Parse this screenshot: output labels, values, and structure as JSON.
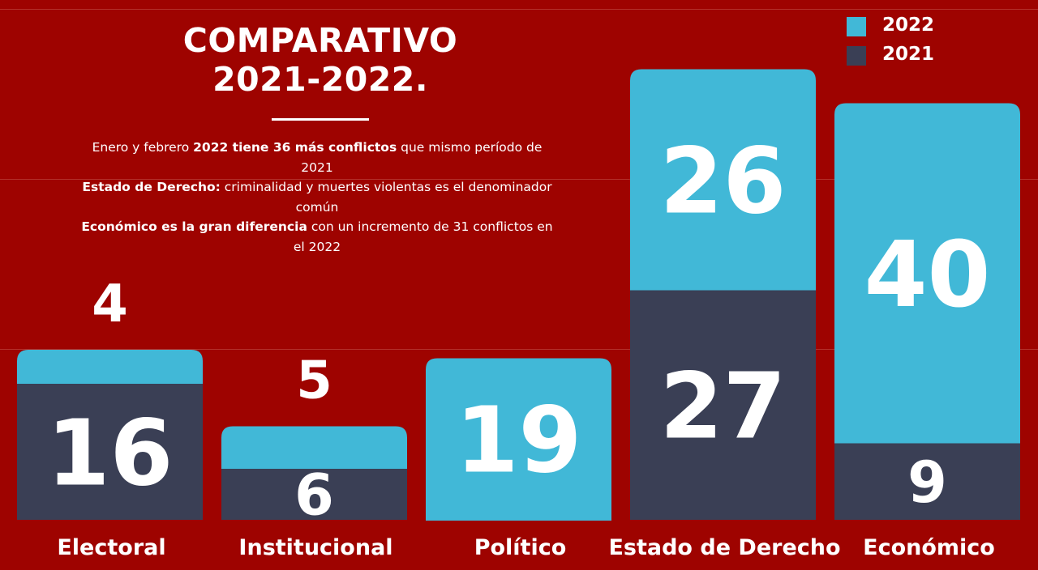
{
  "title_line1": "COMPARATIVO",
  "title_line2": "2021-2022.",
  "description": [
    [
      {
        "t": "Enero y febrero ",
        "b": false
      },
      {
        "t": "2022 tiene 36 más conflictos",
        "b": true
      },
      {
        "t": " que mismo período de 2021",
        "b": false
      }
    ],
    [
      {
        "t": "Estado de Derecho:",
        "b": true
      },
      {
        "t": " criminalidad y muertes violentas es el denominador común",
        "b": false
      }
    ],
    [
      {
        "t": "Económico es la gran diferencia",
        "b": true
      },
      {
        "t": " con un incremento de 31 conflictos en el 2022",
        "b": false
      }
    ]
  ],
  "colors": {
    "background": "#9e0300",
    "2022": "#41b8d7",
    "2021": "#3a3f55"
  },
  "chart_data": {
    "type": "bar",
    "stacked": true,
    "categories": [
      "Electoral",
      "Institucional",
      "Político",
      "Estado de Derecho",
      "Económico"
    ],
    "series": [
      {
        "name": "2021",
        "values": [
          16,
          6,
          0,
          27,
          9
        ]
      },
      {
        "name": "2022",
        "values": [
          4,
          5,
          19,
          26,
          40
        ]
      }
    ],
    "legend": [
      "2022",
      "2021"
    ],
    "legend_position": "top-right"
  }
}
